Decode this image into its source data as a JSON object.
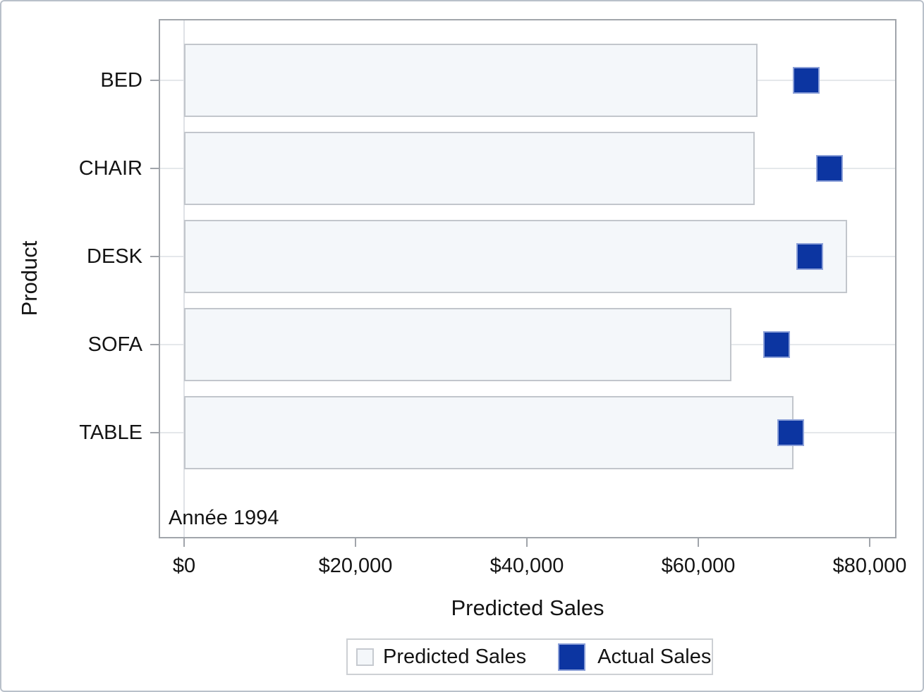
{
  "chart_data": {
    "type": "bar",
    "orientation": "horizontal",
    "title": "",
    "xlabel": "Predicted Sales",
    "ylabel": "Product",
    "annotation": "Année 1994",
    "categories": [
      "BED",
      "CHAIR",
      "DESK",
      "SOFA",
      "TABLE"
    ],
    "series": [
      {
        "name": "Predicted Sales",
        "render": "bar",
        "color": "#f4f7fa",
        "border_color": "#c2c6cc",
        "values": [
          66900,
          66600,
          77400,
          63900,
          71100
        ]
      },
      {
        "name": "Actual Sales",
        "render": "square-marker",
        "color": "#0c35a1",
        "values": [
          72600,
          75300,
          73000,
          69100,
          70800
        ]
      }
    ],
    "xlim": [
      0,
      83100
    ],
    "xticks": {
      "values": [
        0,
        20000,
        40000,
        60000,
        80000
      ],
      "labels": [
        "$0",
        "$20,000",
        "$40,000",
        "$60,000",
        "$80,000"
      ]
    },
    "grid": "horizontal-category-lines",
    "legend": {
      "position": "bottom",
      "entries": [
        "Predicted Sales",
        "Actual Sales"
      ]
    },
    "colors": {
      "marker_blue": "#0c35a1",
      "bar_fill": "#f4f7fa",
      "wall_gray": "#a1a5ab",
      "gridline_gray": "#e5e8eb",
      "outer_border": "#b9c0ca"
    }
  }
}
